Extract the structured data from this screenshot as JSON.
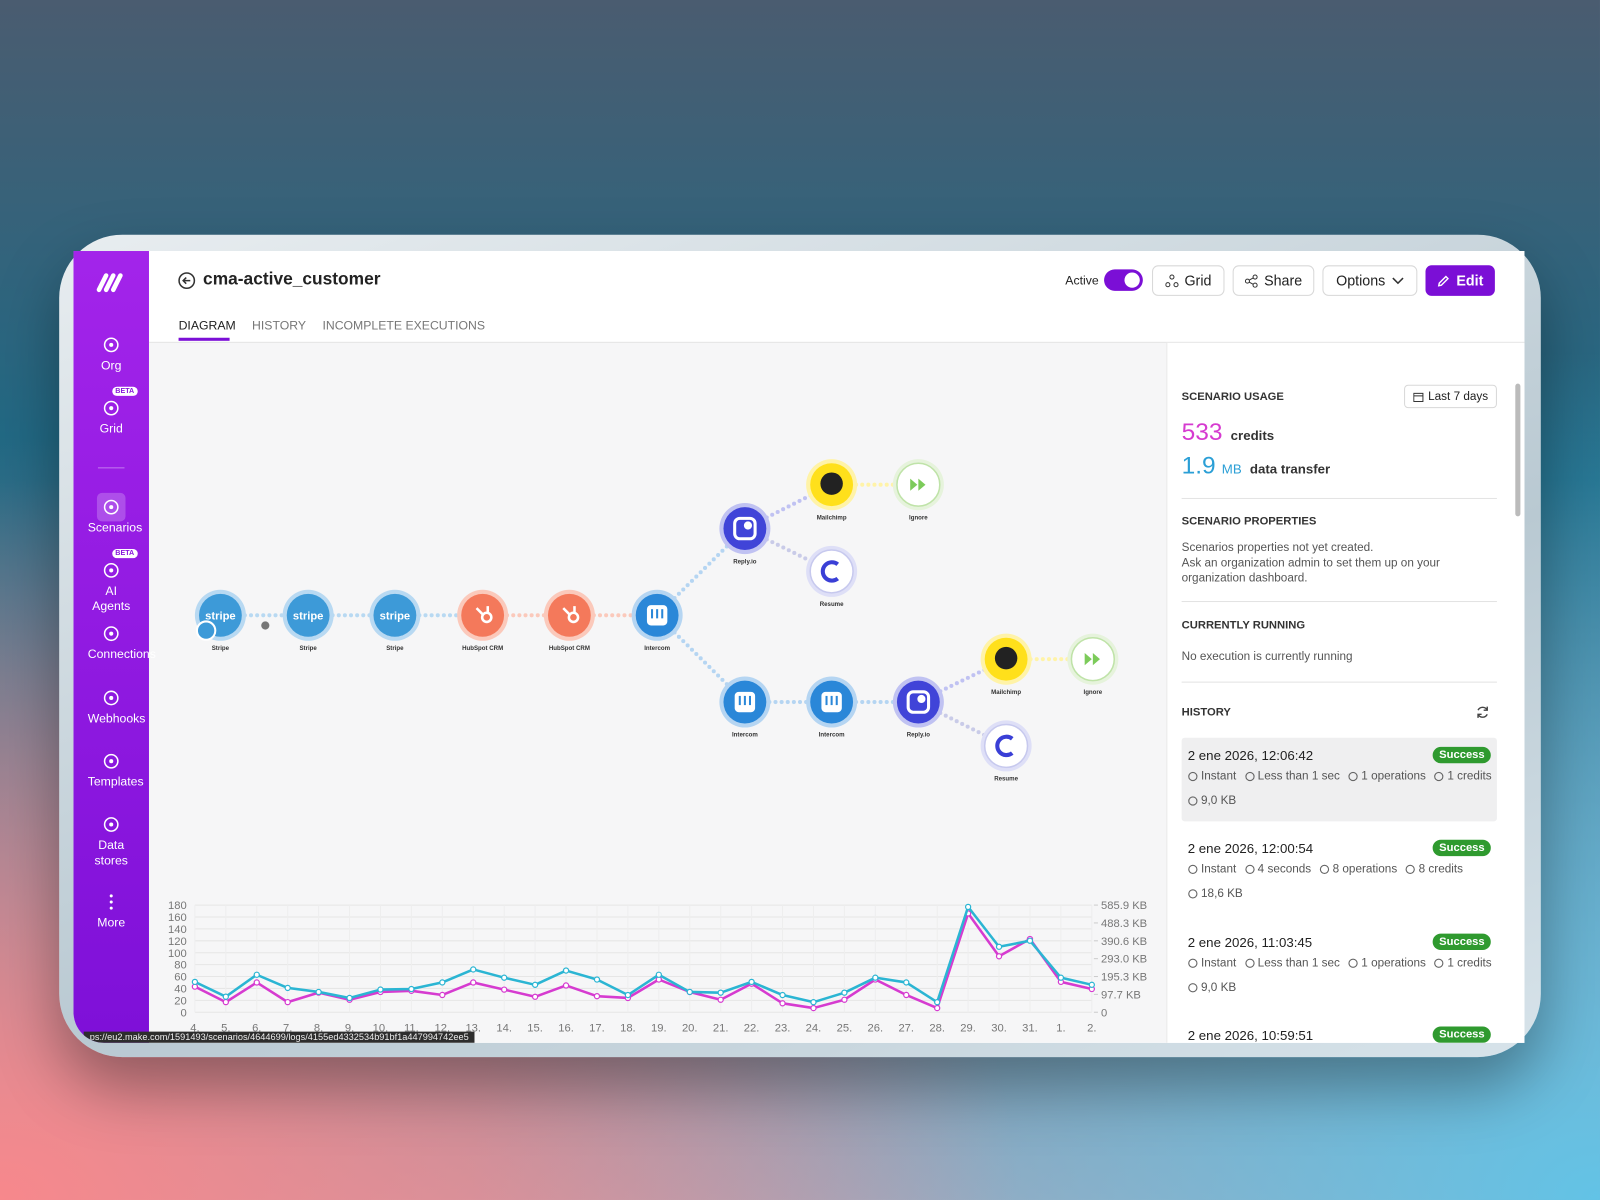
{
  "sidebar": {
    "items": [
      {
        "label": "Org"
      },
      {
        "label": "Grid",
        "badge": "BETA"
      },
      {
        "label": "Scenarios"
      },
      {
        "label": "AI Agents",
        "badge": "BETA"
      },
      {
        "label": "Connections"
      },
      {
        "label": "Webhooks"
      },
      {
        "label": "Templates"
      },
      {
        "label": "Data stores"
      },
      {
        "label": "More"
      }
    ]
  },
  "header": {
    "title": "cma-active_customer",
    "active_label": "Active",
    "buttons": [
      "Grid",
      "Share",
      "Options",
      "Edit"
    ],
    "tabs": [
      "DIAGRAM",
      "HISTORY",
      "INCOMPLETE EXECUTIONS"
    ]
  },
  "diagram": {
    "nodes": [
      {
        "label": "Stripe",
        "logo": "stripe"
      },
      {
        "label": "Stripe",
        "logo": "stripe"
      },
      {
        "label": "Stripe",
        "logo": "stripe"
      },
      {
        "label": "HubSpot CRM"
      },
      {
        "label": "HubSpot CRM"
      },
      {
        "label": "Intercom"
      },
      {
        "label": "Reply.io"
      },
      {
        "label": "Mailchimp"
      },
      {
        "label": "Ignore"
      },
      {
        "label": "Resume"
      },
      {
        "label": "Intercom"
      },
      {
        "label": "Intercom"
      },
      {
        "label": "Reply.io"
      },
      {
        "label": "Mailchimp"
      },
      {
        "label": "Ignore"
      },
      {
        "label": "Resume"
      }
    ]
  },
  "chart_data": {
    "type": "line",
    "categories": [
      "4.",
      "5.",
      "6.",
      "7.",
      "8.",
      "9.",
      "10.",
      "11.",
      "12.",
      "13.",
      "14.",
      "15.",
      "16.",
      "17.",
      "18.",
      "19.",
      "20.",
      "21.",
      "22.",
      "23.",
      "24.",
      "25.",
      "26.",
      "27.",
      "28.",
      "29.",
      "30.",
      "31.",
      "1.",
      "2."
    ],
    "series": [
      {
        "color": "#d63bd0",
        "values": [
          43,
          17,
          50,
          17,
          33,
          21,
          34,
          36,
          29,
          50,
          38,
          26,
          45,
          27,
          24,
          55,
          34,
          21,
          48,
          15,
          7,
          21,
          55,
          29,
          7,
          166,
          94,
          123,
          51,
          39
        ]
      },
      {
        "color": "#2bb5d3",
        "axis": "y2",
        "values": [
          166,
          85,
          205,
          133,
          111,
          78,
          124,
          127,
          163,
          234,
          189,
          150,
          228,
          179,
          94,
          205,
          111,
          107,
          166,
          94,
          55,
          107,
          189,
          163,
          55,
          576,
          358,
          391,
          189,
          150
        ]
      }
    ],
    "ylim": [
      0,
      180
    ],
    "yticks": [
      0,
      20,
      40,
      60,
      80,
      100,
      120,
      140,
      160,
      180
    ],
    "y2lim": [
      0,
      585.9
    ],
    "y2ticks": [
      0,
      {
        "value": 97.7,
        "label": "97.7 KB"
      },
      {
        "value": 195.3,
        "label": "195.3 KB"
      },
      {
        "value": 293.0,
        "label": "293.0 KB"
      },
      {
        "value": 390.6,
        "label": "390.6 KB"
      },
      {
        "value": 488.3,
        "label": "488.3 KB"
      },
      {
        "value": 585.9,
        "label": "585.9 KB"
      }
    ],
    "grid": true
  },
  "panel": {
    "usage": {
      "title": "SCENARIO USAGE",
      "range": "Last 7 days",
      "credits": 533,
      "credits_label": "credits",
      "transfer": 1.9,
      "transfer_unit": "MB",
      "transfer_label": "data transfer"
    },
    "properties": {
      "title": "SCENARIO PROPERTIES",
      "lines": [
        "Scenarios properties not yet created.",
        "Ask an organization admin to set them up on your organization dashboard."
      ]
    },
    "running": {
      "title": "CURRENTLY RUNNING",
      "text": "No execution is currently running"
    },
    "history": {
      "title": "HISTORY",
      "items": [
        {
          "date": "2 ene 2026, 12:06:42",
          "status": "Success",
          "meta": [
            "Instant",
            "Less than 1 sec",
            "1 operations",
            "1 credits",
            "9,0 KB"
          ]
        },
        {
          "date": "2 ene 2026, 12:00:54",
          "status": "Success",
          "meta": [
            "Instant",
            "4 seconds",
            "8 operations",
            "8 credits",
            "18,6 KB"
          ]
        },
        {
          "date": "2 ene 2026, 11:03:45",
          "status": "Success",
          "meta": [
            "Instant",
            "Less than 1 sec",
            "1 operations",
            "1 credits",
            "9,0 KB"
          ]
        },
        {
          "date": "2 ene 2026, 10:59:51",
          "status": "Success",
          "meta": []
        }
      ]
    }
  },
  "status_url": "ps://eu2.make.com/1591493/scenarios/4644699/logs/4155ed4332534b91bf1a447994742ee5"
}
